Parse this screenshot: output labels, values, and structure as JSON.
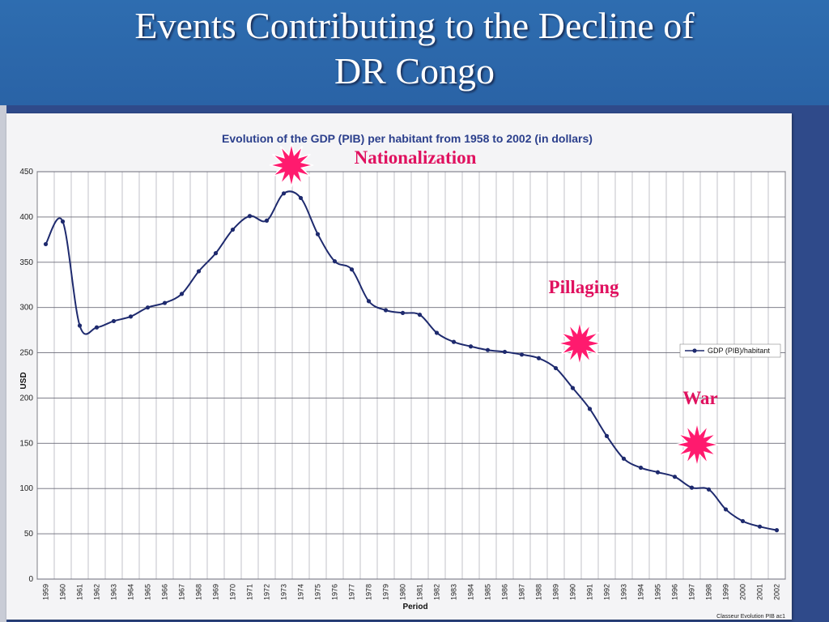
{
  "slide": {
    "title_line1": "Events Contributing to the Decline of",
    "title_line2": "DR Congo"
  },
  "colors": {
    "header": "#2e6db0",
    "background": "#2f4a8a",
    "series": "#1e2a6e",
    "burst": "#ff1a6e",
    "annotation": "#e0115f"
  },
  "chart_data": {
    "type": "line",
    "title": "Evolution of the GDP (PIB) per habitant from 1958 to 2002 (in dollars)",
    "xlabel": "Period",
    "ylabel": "USD",
    "ylim": [
      0,
      450
    ],
    "yticks": [
      0,
      50,
      100,
      150,
      200,
      250,
      300,
      350,
      400,
      450
    ],
    "grid": true,
    "legend": "right",
    "categories": [
      "1959",
      "1960",
      "1961",
      "1962",
      "1963",
      "1964",
      "1965",
      "1966",
      "1967",
      "1968",
      "1969",
      "1970",
      "1971",
      "1972",
      "1973",
      "1974",
      "1975",
      "1976",
      "1977",
      "1978",
      "1979",
      "1980",
      "1981",
      "1982",
      "1983",
      "1984",
      "1985",
      "1986",
      "1987",
      "1988",
      "1989",
      "1990",
      "1991",
      "1992",
      "1993",
      "1994",
      "1995",
      "1996",
      "1997",
      "1998",
      "1999",
      "2000",
      "2001",
      "2002"
    ],
    "series": [
      {
        "name": "GDP (PIB)/habitant",
        "values": [
          370,
          395,
          280,
          278,
          285,
          290,
          300,
          305,
          315,
          340,
          360,
          386,
          401,
          396,
          426,
          421,
          381,
          351,
          342,
          307,
          297,
          294,
          292,
          272,
          262,
          257,
          253,
          251,
          248,
          244,
          233,
          211,
          188,
          158,
          133,
          123,
          118,
          113,
          101,
          99,
          77,
          64,
          58,
          54
        ]
      }
    ],
    "annotations": [
      {
        "text": "Nationalization",
        "year": "1973"
      },
      {
        "text": "Pillaging",
        "year": "1990"
      },
      {
        "text": "War",
        "year": "1997"
      }
    ],
    "footer": "Classeur Evolution PIB ac1"
  }
}
